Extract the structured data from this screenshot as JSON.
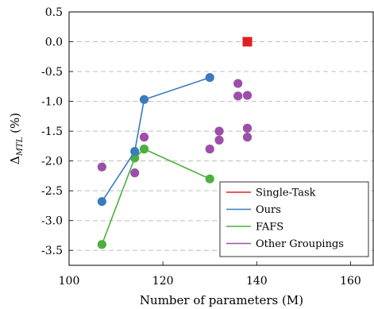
{
  "chart_data": {
    "type": "scatter",
    "xlabel": "Number of parameters (M)",
    "ylabel_main": "Δ",
    "ylabel_sub": "MTL",
    "ylabel_unit": " (%)",
    "xlim": [
      100,
      165
    ],
    "ylim": [
      -3.75,
      0.5
    ],
    "xticks": [
      100,
      120,
      140,
      160
    ],
    "xtick_labels": [
      "100",
      "120",
      "140",
      "160"
    ],
    "yticks": [
      0.5,
      0,
      -0.5,
      -1,
      -1.5,
      -2,
      -2.5,
      -3,
      -3.5
    ],
    "ytick_labels": [
      "0.5",
      "0.0",
      "-0.5",
      "-1.0",
      "-1.5",
      "-2.0",
      "-2.5",
      "-3.0",
      "-3.5"
    ],
    "grid": "horizontal dashed",
    "legend_position": "bottom-right",
    "series": [
      {
        "name": "Single-Task",
        "color": "#e02020",
        "marker": "square",
        "line": false,
        "points": [
          [
            138,
            0.0
          ]
        ]
      },
      {
        "name": "Ours",
        "color": "#3a7bbf",
        "marker": "circle",
        "line": true,
        "points": [
          [
            107,
            -2.68
          ],
          [
            114,
            -1.84
          ],
          [
            116,
            -0.97
          ],
          [
            130,
            -0.6
          ]
        ]
      },
      {
        "name": "FAFS",
        "color": "#4caf3e",
        "marker": "circle",
        "line": true,
        "points": [
          [
            107,
            -3.4
          ],
          [
            114,
            -1.95
          ],
          [
            116,
            -1.8
          ],
          [
            130,
            -2.3
          ]
        ]
      },
      {
        "name": "Other Groupings",
        "color": "#9c4fa8",
        "marker": "circle",
        "line": false,
        "points": [
          [
            107,
            -2.1
          ],
          [
            114,
            -2.2
          ],
          [
            116,
            -1.6
          ],
          [
            130,
            -1.8
          ],
          [
            132,
            -1.5
          ],
          [
            132,
            -1.65
          ],
          [
            136,
            -0.7
          ],
          [
            136,
            -0.91
          ],
          [
            138,
            -0.9
          ],
          [
            138,
            -1.45
          ],
          [
            138,
            -1.6
          ]
        ]
      }
    ]
  }
}
